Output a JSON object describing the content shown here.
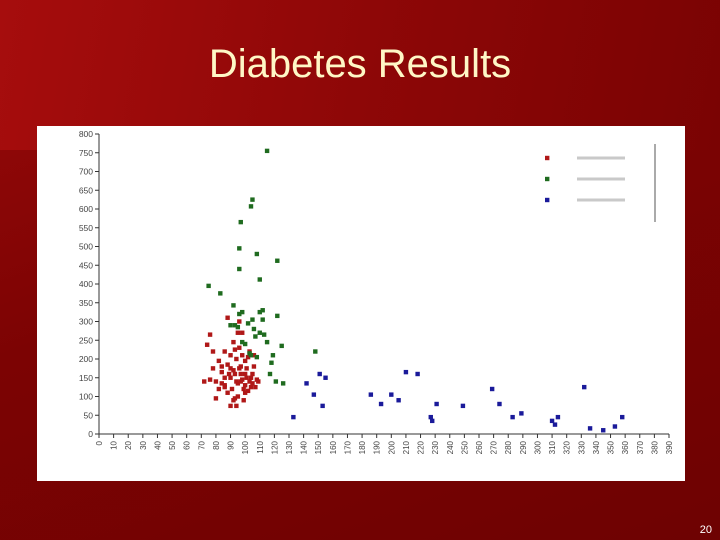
{
  "slide": {
    "title": "Diabetes Results",
    "page_number": "20"
  },
  "colors": {
    "background": "#7c0303",
    "title": "#fff7c6",
    "series_red": "#b01818",
    "series_green": "#1f6b1f",
    "series_blue": "#1a1a9a"
  },
  "chart_data": {
    "type": "scatter",
    "ylim": [
      0,
      800
    ],
    "xlim": [
      0,
      390
    ],
    "y_ticks": [
      0,
      50,
      100,
      150,
      200,
      250,
      300,
      350,
      400,
      450,
      500,
      550,
      600,
      650,
      700,
      750,
      800
    ],
    "x_ticks": [
      0,
      10,
      20,
      30,
      40,
      50,
      60,
      70,
      80,
      90,
      100,
      110,
      120,
      130,
      140,
      150,
      160,
      170,
      180,
      190,
      200,
      210,
      220,
      230,
      240,
      250,
      260,
      270,
      280,
      290,
      300,
      310,
      320,
      330,
      340,
      350,
      360,
      370,
      380,
      390
    ],
    "grid": false,
    "legend_position": "top-right",
    "series": [
      {
        "color": "#b01818",
        "points": [
          [
            72,
            140
          ],
          [
            74,
            238
          ],
          [
            76,
            265
          ],
          [
            78,
            175
          ],
          [
            80,
            95
          ],
          [
            82,
            120
          ],
          [
            84,
            135
          ],
          [
            86,
            150
          ],
          [
            86,
            220
          ],
          [
            88,
            185
          ],
          [
            88,
            310
          ],
          [
            90,
            150
          ],
          [
            90,
            210
          ],
          [
            91,
            120
          ],
          [
            92,
            170
          ],
          [
            92,
            245
          ],
          [
            93,
            95
          ],
          [
            94,
            140
          ],
          [
            94,
            200
          ],
          [
            95,
            135
          ],
          [
            95,
            270
          ],
          [
            96,
            175
          ],
          [
            96,
            230
          ],
          [
            97,
            180
          ],
          [
            98,
            145
          ],
          [
            98,
            210
          ],
          [
            99,
            120
          ],
          [
            100,
            130
          ],
          [
            100,
            160
          ],
          [
            100,
            195
          ],
          [
            101,
            150
          ],
          [
            102,
            115
          ],
          [
            102,
            205
          ],
          [
            103,
            140
          ],
          [
            104,
            125
          ],
          [
            105,
            135
          ],
          [
            106,
            180
          ],
          [
            108,
            145
          ],
          [
            76,
            145
          ],
          [
            78,
            220
          ],
          [
            80,
            140
          ],
          [
            82,
            195
          ],
          [
            84,
            165
          ],
          [
            86,
            130
          ],
          [
            88,
            110
          ],
          [
            90,
            175
          ],
          [
            93,
            225
          ],
          [
            95,
            100
          ],
          [
            97,
            160
          ],
          [
            99,
            90
          ],
          [
            101,
            175
          ],
          [
            103,
            220
          ],
          [
            105,
            160
          ],
          [
            107,
            125
          ],
          [
            109,
            140
          ],
          [
            98,
            270
          ],
          [
            96,
            300
          ],
          [
            92,
            90
          ],
          [
            94,
            75
          ],
          [
            90,
            75
          ],
          [
            86,
            125
          ],
          [
            84,
            180
          ],
          [
            89,
            160
          ],
          [
            93,
            160
          ],
          [
            97,
            140
          ],
          [
            100,
            110
          ],
          [
            104,
            150
          ],
          [
            106,
            210
          ]
        ]
      },
      {
        "color": "#1f6b1f",
        "points": [
          [
            115,
            755
          ],
          [
            105,
            625
          ],
          [
            104,
            607
          ],
          [
            97,
            565
          ],
          [
            96,
            495
          ],
          [
            108,
            480
          ],
          [
            96,
            440
          ],
          [
            110,
            412
          ],
          [
            122,
            462
          ],
          [
            75,
            395
          ],
          [
            83,
            375
          ],
          [
            92,
            343
          ],
          [
            96,
            320
          ],
          [
            98,
            325
          ],
          [
            110,
            325
          ],
          [
            112,
            305
          ],
          [
            102,
            295
          ],
          [
            105,
            305
          ],
          [
            90,
            290
          ],
          [
            95,
            285
          ],
          [
            106,
            280
          ],
          [
            110,
            270
          ],
          [
            113,
            265
          ],
          [
            98,
            245
          ],
          [
            100,
            240
          ],
          [
            115,
            245
          ],
          [
            125,
            235
          ],
          [
            148,
            220
          ],
          [
            103,
            215
          ],
          [
            108,
            205
          ],
          [
            118,
            190
          ],
          [
            117,
            160
          ],
          [
            121,
            140
          ],
          [
            126,
            135
          ],
          [
            104,
            210
          ],
          [
            93,
            290
          ],
          [
            119,
            210
          ],
          [
            122,
            315
          ],
          [
            107,
            260
          ],
          [
            112,
            330
          ]
        ]
      },
      {
        "color": "#1a1a9a",
        "points": [
          [
            133,
            45
          ],
          [
            142,
            135
          ],
          [
            147,
            105
          ],
          [
            151,
            160
          ],
          [
            153,
            75
          ],
          [
            155,
            150
          ],
          [
            186,
            105
          ],
          [
            193,
            80
          ],
          [
            200,
            105
          ],
          [
            205,
            90
          ],
          [
            210,
            165
          ],
          [
            218,
            160
          ],
          [
            227,
            45
          ],
          [
            228,
            35
          ],
          [
            231,
            80
          ],
          [
            249,
            75
          ],
          [
            269,
            120
          ],
          [
            274,
            80
          ],
          [
            283,
            45
          ],
          [
            289,
            55
          ],
          [
            310,
            35
          ],
          [
            312,
            25
          ],
          [
            314,
            45
          ],
          [
            332,
            125
          ],
          [
            336,
            15
          ],
          [
            345,
            10
          ],
          [
            353,
            20
          ],
          [
            358,
            45
          ]
        ]
      }
    ],
    "legend": [
      {
        "color": "#b01818"
      },
      {
        "color": "#1f6b1f"
      },
      {
        "color": "#1a1a9a"
      }
    ]
  }
}
